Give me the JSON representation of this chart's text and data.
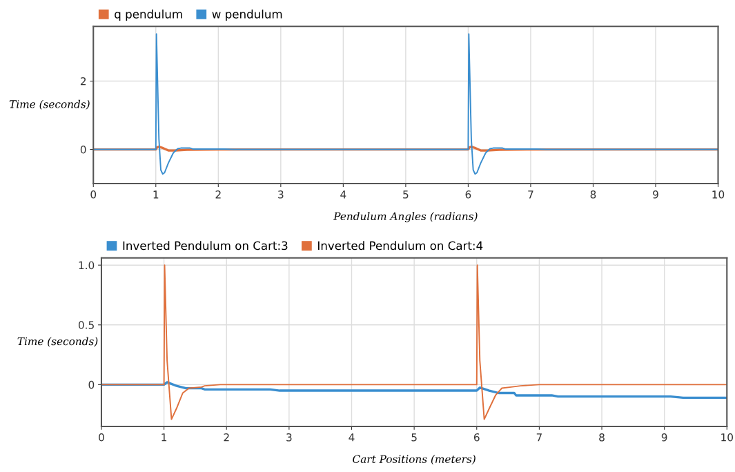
{
  "chart_data": [
    {
      "type": "line",
      "xlabel": "Pendulum Angles (radians)",
      "ylabel": "Time (seconds)",
      "xlim": [
        0,
        10
      ],
      "ylim": [
        -1,
        3.6
      ],
      "xticks": [
        0,
        1,
        2,
        3,
        4,
        5,
        6,
        7,
        8,
        9,
        10
      ],
      "yticks": [
        0,
        2
      ],
      "grid": true,
      "legend": "top left",
      "series": [
        {
          "name": "q pendulum",
          "color": "#e0703c",
          "x": [
            0,
            1,
            1.02,
            1.05,
            1.1,
            1.2,
            1.3,
            1.5,
            2,
            5,
            6,
            6.02,
            6.05,
            6.1,
            6.2,
            6.3,
            6.5,
            7,
            10
          ],
          "values": [
            0,
            0,
            0.06,
            0.08,
            0.05,
            -0.03,
            -0.03,
            -0.01,
            0,
            0,
            0,
            0.06,
            0.08,
            0.05,
            -0.03,
            -0.03,
            -0.01,
            0,
            0
          ]
        },
        {
          "name": "w pendulum",
          "color": "#3a8ecf",
          "x": [
            0,
            1,
            1.01,
            1.05,
            1.08,
            1.11,
            1.14,
            1.2,
            1.28,
            1.35,
            1.4,
            1.55,
            1.6,
            2.1,
            2.25,
            5,
            6,
            6.01,
            6.05,
            6.08,
            6.11,
            6.14,
            6.2,
            6.28,
            6.35,
            6.4,
            6.55,
            6.6,
            7.1,
            7.25,
            10
          ],
          "values": [
            0,
            0,
            3.38,
            0.3,
            -0.6,
            -0.72,
            -0.68,
            -0.4,
            -0.1,
            0.02,
            0.04,
            0.04,
            0.01,
            0.01,
            0,
            0,
            0,
            3.38,
            0.3,
            -0.6,
            -0.72,
            -0.68,
            -0.4,
            -0.1,
            0.02,
            0.04,
            0.04,
            0.01,
            0.01,
            0,
            0
          ]
        }
      ]
    },
    {
      "type": "line",
      "xlabel": "Cart Positions (meters)",
      "ylabel": "Time (seconds)",
      "xlim": [
        0,
        10
      ],
      "ylim": [
        -0.35,
        1.06
      ],
      "xticks": [
        0,
        1,
        2,
        3,
        4,
        5,
        6,
        7,
        8,
        9,
        10
      ],
      "yticks": [
        0,
        0.5,
        {
          "value": 1,
          "label": "1.0"
        }
      ],
      "grid": true,
      "legend": "top left",
      "series": [
        {
          "name": "Inverted Pendulum on Cart:3",
          "color": "#3a8ecf",
          "x": [
            0,
            1,
            1.05,
            1.2,
            1.35,
            1.6,
            1.65,
            2.7,
            2.85,
            6,
            6.05,
            6.2,
            6.35,
            6.6,
            6.63,
            7.2,
            7.3,
            9.1,
            9.3,
            10
          ],
          "values": [
            0,
            0,
            0.02,
            -0.01,
            -0.03,
            -0.03,
            -0.04,
            -0.04,
            -0.05,
            -0.05,
            -0.025,
            -0.05,
            -0.07,
            -0.07,
            -0.09,
            -0.09,
            -0.1,
            -0.1,
            -0.11,
            -0.11
          ]
        },
        {
          "name": "Inverted Pendulum on Cart:4",
          "color": "#e0703c",
          "x": [
            0,
            1,
            1.01,
            1.05,
            1.12,
            1.2,
            1.3,
            1.4,
            1.6,
            1.65,
            1.9,
            6,
            6.01,
            6.05,
            6.12,
            6.2,
            6.3,
            6.4,
            6.55,
            6.7,
            7,
            10
          ],
          "values": [
            0,
            0,
            1.0,
            0.2,
            -0.29,
            -0.2,
            -0.07,
            -0.03,
            -0.02,
            -0.01,
            0,
            0,
            1.0,
            0.2,
            -0.29,
            -0.2,
            -0.09,
            -0.03,
            -0.02,
            -0.01,
            0,
            0
          ]
        }
      ]
    }
  ]
}
